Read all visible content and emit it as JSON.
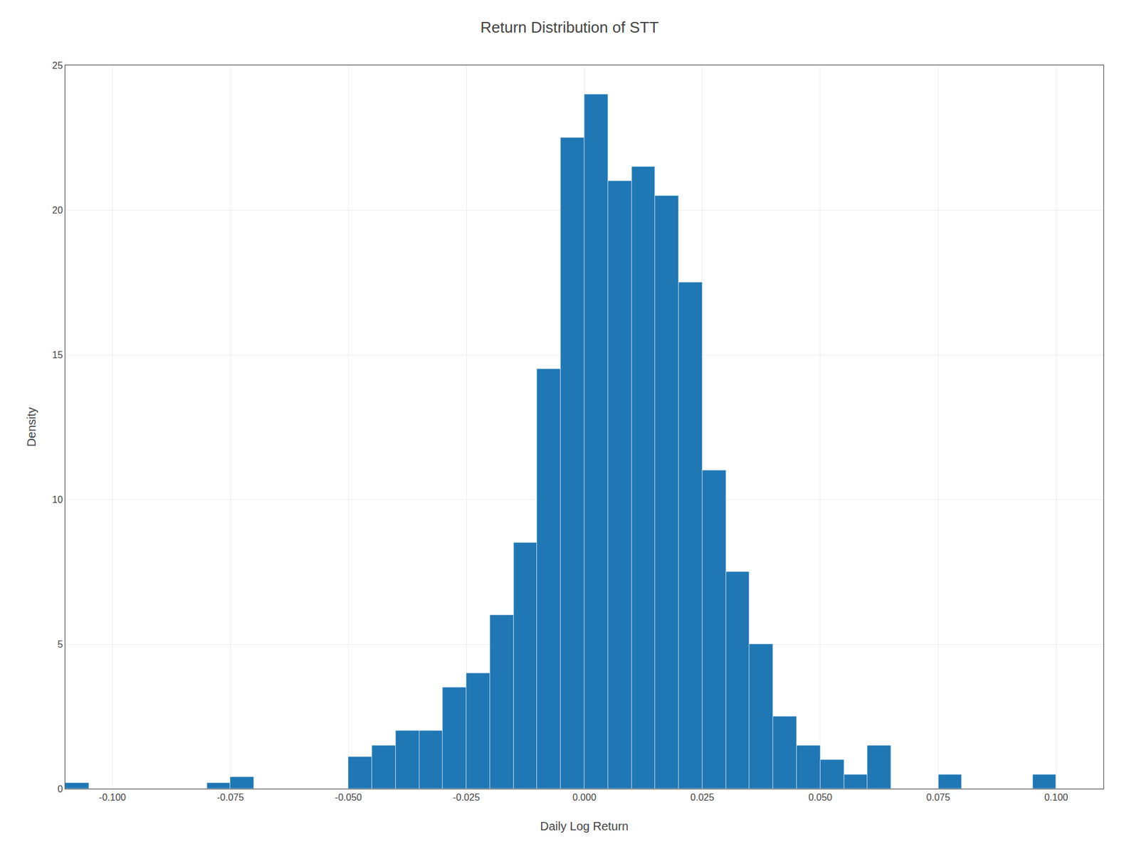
{
  "chart_data": {
    "type": "histogram",
    "title": "Return Distribution of STT",
    "xlabel": "Daily Log Return",
    "ylabel": "Density",
    "color": "#1f77b4",
    "bins": [
      -0.11,
      -0.105,
      -0.1,
      -0.095,
      -0.09,
      -0.085,
      -0.08,
      -0.075,
      -0.07,
      -0.065,
      -0.06,
      -0.055,
      -0.05,
      -0.045,
      -0.04,
      -0.035,
      -0.03,
      -0.025,
      -0.02,
      -0.015,
      -0.01,
      -0.005,
      0.0,
      0.005,
      0.01,
      0.015,
      0.02,
      0.025,
      0.03,
      0.035,
      0.04,
      0.045,
      0.05,
      0.055,
      0.06,
      0.065,
      0.07,
      0.075,
      0.08,
      0.085,
      0.09,
      0.095,
      0.1,
      0.105,
      0.11
    ],
    "values": [
      0.2,
      0.0,
      0.0,
      0.0,
      0.0,
      0.0,
      0.2,
      0.4,
      0.0,
      0.0,
      0.0,
      0.0,
      1.1,
      1.5,
      2.0,
      2.0,
      3.5,
      4.0,
      6.0,
      8.5,
      14.5,
      22.5,
      24.0,
      21.0,
      21.5,
      20.5,
      17.5,
      11.0,
      7.5,
      5.0,
      2.5,
      1.5,
      1.0,
      0.5,
      1.5,
      0.0,
      0.0,
      0.5,
      0.0,
      0.0,
      0.0,
      0.5,
      0.0,
      0.0
    ],
    "xlim": [
      -0.11,
      0.11
    ],
    "ylim": [
      0,
      25
    ],
    "xticks": [
      {
        "value": -0.1,
        "label": "-0.100"
      },
      {
        "value": -0.075,
        "label": "-0.075"
      },
      {
        "value": -0.05,
        "label": "-0.050"
      },
      {
        "value": -0.025,
        "label": "-0.025"
      },
      {
        "value": 0,
        "label": "0.000"
      },
      {
        "value": 0.025,
        "label": "0.025"
      },
      {
        "value": 0.05,
        "label": "0.050"
      },
      {
        "value": 0.075,
        "label": "0.075"
      },
      {
        "value": 0.1,
        "label": "0.100"
      }
    ],
    "yticks": [
      0,
      5,
      10,
      15,
      20,
      25
    ],
    "grid": true
  }
}
